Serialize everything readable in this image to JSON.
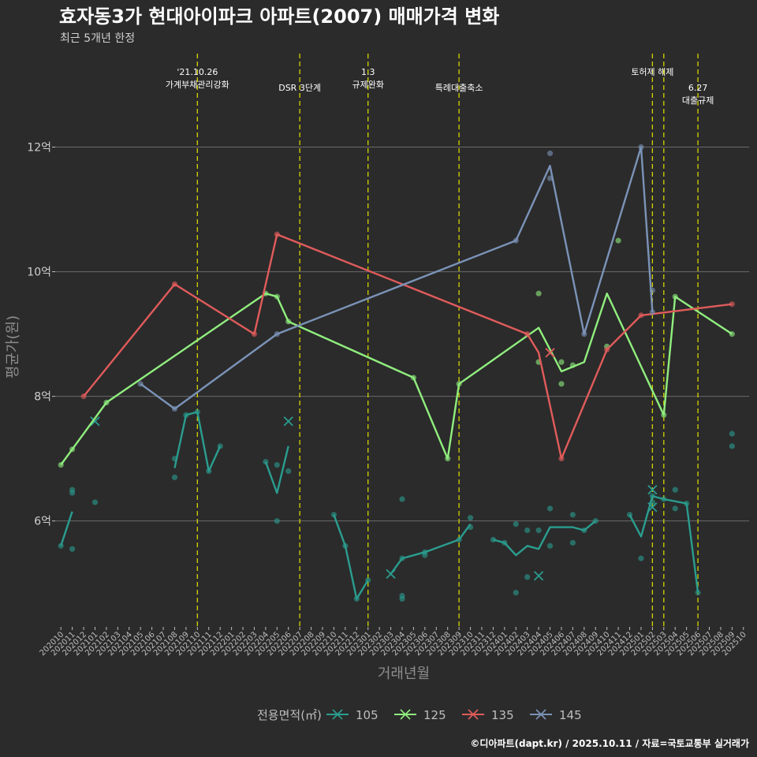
{
  "chart_data": {
    "type": "line",
    "title": "효자동3가 현대아이파크 아파트(2007) 매매가격 변화",
    "subtitle": "최근 5개년 한정",
    "xlabel": "거래년월",
    "ylabel": "평균가(원)",
    "caption": "©디아파트(dapt.kr) / 2025.10.11 / 자료=국토교통부 실거래가",
    "legend_title": "전용면적(㎡)",
    "ylim": [
      4.3,
      13.5
    ],
    "y_ticks": [
      {
        "value": 6,
        "label": "6억"
      },
      {
        "value": 8,
        "label": "8억"
      },
      {
        "value": 10,
        "label": "10억"
      },
      {
        "value": 12,
        "label": "12억"
      }
    ],
    "months": [
      "202010",
      "202011",
      "202012",
      "202101",
      "202102",
      "202103",
      "202104",
      "202105",
      "202106",
      "202107",
      "202108",
      "202109",
      "202110",
      "202111",
      "202112",
      "202201",
      "202202",
      "202203",
      "202204",
      "202205",
      "202206",
      "202207",
      "202208",
      "202209",
      "202210",
      "202211",
      "202212",
      "202301",
      "202302",
      "202303",
      "202304",
      "202305",
      "202306",
      "202307",
      "202308",
      "202309",
      "202310",
      "202311",
      "202312",
      "202401",
      "202402",
      "202403",
      "202404",
      "202405",
      "202406",
      "202407",
      "202408",
      "202409",
      "202410",
      "202411",
      "202412",
      "202501",
      "202502",
      "202503",
      "202504",
      "202505",
      "202506",
      "202507",
      "202508",
      "202509",
      "202510"
    ],
    "events": [
      {
        "x": 12.0,
        "lines": [
          "'21.10.26",
          "가계부채관리강화"
        ],
        "row": 0
      },
      {
        "x": 21.0,
        "lines": [
          "DSR 3단계"
        ],
        "row": 1
      },
      {
        "x": 27.0,
        "lines": [
          "1.3",
          "규제완화"
        ],
        "row": 0
      },
      {
        "x": 35.0,
        "lines": [
          "특례대출축소"
        ],
        "row": 1
      },
      {
        "x": 52.0,
        "lines": [
          "토허제 해제"
        ],
        "row": 0
      },
      {
        "x": 53.0,
        "lines": [],
        "row": 0
      },
      {
        "x": 56.0,
        "lines": [
          "6.27",
          "대출규제"
        ],
        "row": 1
      }
    ],
    "series": [
      {
        "name": "105",
        "color": "#2a9d8f",
        "line": [
          [
            [
              0,
              5.6
            ],
            [
              1,
              6.15
            ]
          ],
          [
            [
              10,
              6.85
            ],
            [
              11,
              7.7
            ],
            [
              12,
              7.75
            ],
            [
              13,
              6.8
            ],
            [
              14,
              7.2
            ]
          ],
          [
            [
              18,
              6.95
            ],
            [
              19,
              6.45
            ],
            [
              20,
              7.2
            ]
          ],
          [
            [
              24,
              6.1
            ],
            [
              25,
              5.6
            ],
            [
              26,
              4.75
            ],
            [
              27,
              5.05
            ]
          ],
          [
            [
              29,
              5.15
            ],
            [
              30,
              5.4
            ],
            [
              32,
              5.5
            ],
            [
              35,
              5.7
            ],
            [
              36,
              5.95
            ]
          ],
          [
            [
              38,
              5.7
            ],
            [
              39,
              5.65
            ],
            [
              40,
              5.45
            ],
            [
              41,
              5.6
            ],
            [
              42,
              5.55
            ],
            [
              43,
              5.9
            ],
            [
              45,
              5.9
            ],
            [
              46,
              5.85
            ],
            [
              47,
              6.0
            ]
          ],
          [
            [
              50,
              6.1
            ],
            [
              51,
              5.75
            ],
            [
              52,
              6.4
            ],
            [
              53,
              6.35
            ],
            [
              55,
              6.28
            ],
            [
              56,
              4.85
            ]
          ]
        ],
        "points": [
          [
            0,
            5.6
          ],
          [
            1,
            6.5
          ],
          [
            1,
            6.45
          ],
          [
            1,
            5.55
          ],
          [
            3,
            6.3
          ],
          [
            10,
            6.7
          ],
          [
            10,
            7.0
          ],
          [
            11,
            7.7
          ],
          [
            12,
            7.75
          ],
          [
            13,
            6.8
          ],
          [
            14,
            7.2
          ],
          [
            18,
            6.95
          ],
          [
            19,
            6.9
          ],
          [
            19,
            6.0
          ],
          [
            20,
            6.8
          ],
          [
            24,
            6.1
          ],
          [
            25,
            5.6
          ],
          [
            26,
            4.75
          ],
          [
            27,
            5.05
          ],
          [
            30,
            5.4
          ],
          [
            30,
            6.35
          ],
          [
            30,
            4.8
          ],
          [
            30,
            4.75
          ],
          [
            32,
            5.5
          ],
          [
            32,
            5.45
          ],
          [
            35,
            5.7
          ],
          [
            36,
            6.05
          ],
          [
            36,
            5.9
          ],
          [
            38,
            5.7
          ],
          [
            39,
            5.65
          ],
          [
            40,
            5.95
          ],
          [
            40,
            4.85
          ],
          [
            41,
            5.1
          ],
          [
            41,
            5.85
          ],
          [
            42,
            5.85
          ],
          [
            43,
            6.2
          ],
          [
            43,
            5.6
          ],
          [
            45,
            6.1
          ],
          [
            45,
            5.65
          ],
          [
            46,
            5.85
          ],
          [
            47,
            6.0
          ],
          [
            50,
            6.1
          ],
          [
            51,
            5.4
          ],
          [
            52,
            6.4
          ],
          [
            52,
            6.3
          ],
          [
            53,
            6.35
          ],
          [
            54,
            6.5
          ],
          [
            54,
            6.2
          ],
          [
            55,
            6.28
          ],
          [
            56,
            4.85
          ],
          [
            59,
            7.4
          ],
          [
            59,
            7.2
          ]
        ],
        "crosses": [
          [
            3,
            7.6
          ],
          [
            20,
            7.6
          ],
          [
            29,
            5.15
          ],
          [
            42,
            5.12
          ],
          [
            52,
            6.5
          ],
          [
            52,
            6.22
          ]
        ]
      },
      {
        "name": "125",
        "color": "#90ee7e",
        "line": [
          [
            [
              0,
              6.9
            ],
            [
              1,
              7.15
            ],
            [
              4,
              7.9
            ],
            [
              18,
              9.65
            ],
            [
              19,
              9.6
            ],
            [
              20,
              9.2
            ],
            [
              31,
              8.3
            ],
            [
              34,
              7.0
            ],
            [
              35,
              8.2
            ],
            [
              42,
              9.1
            ],
            [
              44,
              8.4
            ],
            [
              46,
              8.55
            ],
            [
              48,
              9.65
            ],
            [
              53,
              7.7
            ],
            [
              54,
              9.6
            ],
            [
              59,
              9.0
            ]
          ]
        ],
        "points": [
          [
            0,
            6.9
          ],
          [
            1,
            7.15
          ],
          [
            4,
            7.9
          ],
          [
            18,
            9.65
          ],
          [
            19,
            9.6
          ],
          [
            20,
            9.2
          ],
          [
            31,
            8.3
          ],
          [
            34,
            7.0
          ],
          [
            35,
            8.2
          ],
          [
            42,
            9.65
          ],
          [
            42,
            8.55
          ],
          [
            44,
            8.55
          ],
          [
            44,
            8.2
          ],
          [
            45,
            8.5
          ],
          [
            48,
            8.8
          ],
          [
            49,
            10.5
          ],
          [
            53,
            7.7
          ],
          [
            54,
            9.6
          ],
          [
            59,
            9.0
          ]
        ],
        "crosses": []
      },
      {
        "name": "135",
        "color": "#e15b5b",
        "line": [
          [
            [
              2,
              8.0
            ],
            [
              10,
              9.8
            ],
            [
              17,
              9.0
            ],
            [
              19,
              10.6
            ],
            [
              41,
              9.0
            ],
            [
              42,
              8.7
            ],
            [
              44,
              7.0
            ],
            [
              48,
              8.75
            ],
            [
              51,
              9.3
            ],
            [
              59,
              9.48
            ]
          ]
        ],
        "points": [
          [
            2,
            8.0
          ],
          [
            10,
            9.8
          ],
          [
            17,
            9.0
          ],
          [
            19,
            10.6
          ],
          [
            41,
            9.0
          ],
          [
            44,
            7.0
          ],
          [
            48,
            8.75
          ],
          [
            51,
            9.3
          ],
          [
            59,
            9.48
          ]
        ],
        "crosses": [
          [
            43,
            8.7
          ]
        ]
      },
      {
        "name": "145",
        "color": "#7b93b8",
        "line": [
          [
            [
              7,
              8.2
            ],
            [
              10,
              7.8
            ],
            [
              19,
              9.0
            ],
            [
              40,
              10.5
            ],
            [
              43,
              11.7
            ],
            [
              46,
              9.0
            ],
            [
              51,
              12.0
            ],
            [
              52,
              9.35
            ]
          ]
        ],
        "points": [
          [
            7,
            8.2
          ],
          [
            10,
            7.8
          ],
          [
            19,
            9.0
          ],
          [
            40,
            10.5
          ],
          [
            43,
            11.9
          ],
          [
            43,
            11.5
          ],
          [
            46,
            9.0
          ],
          [
            51,
            12.0
          ],
          [
            52,
            9.35
          ],
          [
            52,
            9.7
          ]
        ],
        "crosses": []
      }
    ]
  }
}
